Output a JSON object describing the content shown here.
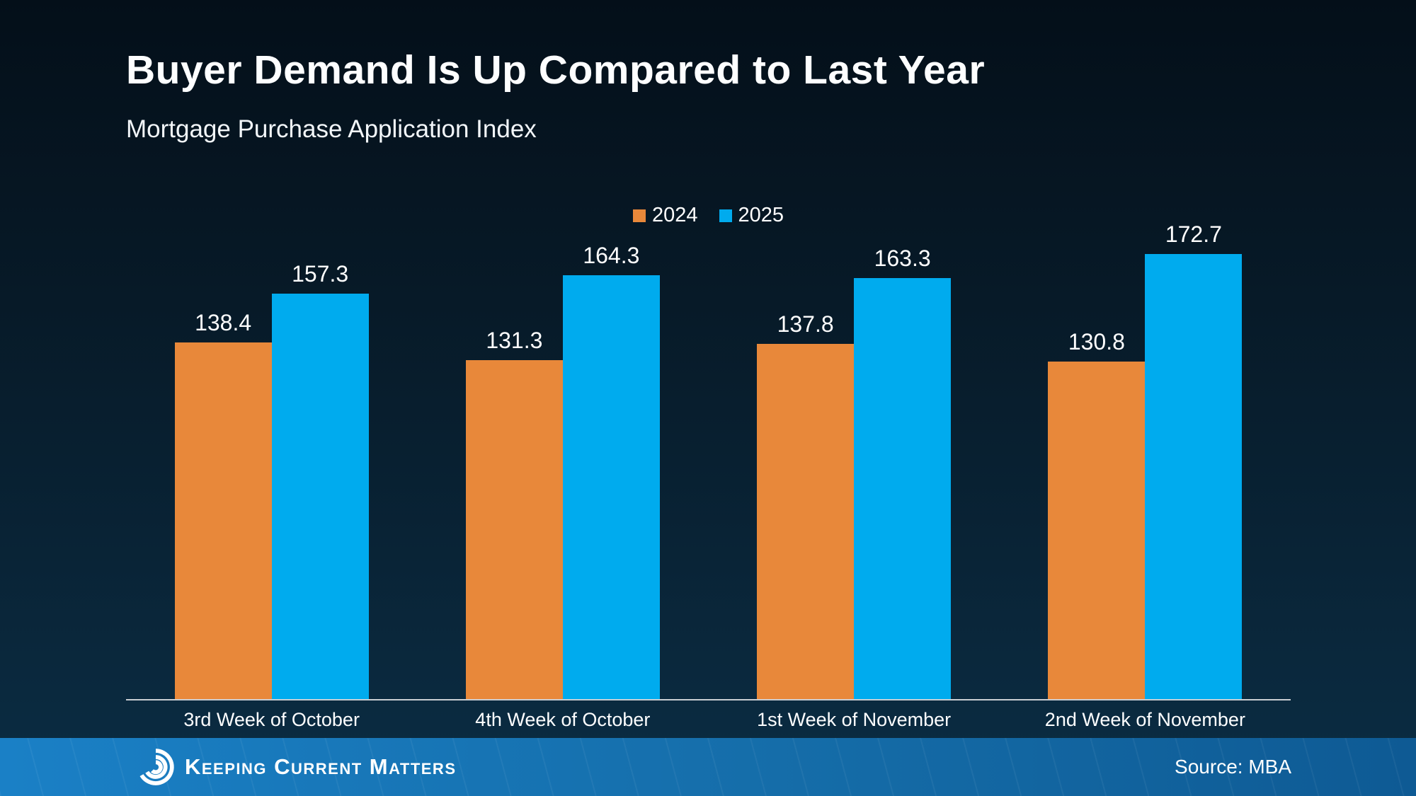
{
  "slide": {
    "title": "Buyer Demand Is Up Compared to Last Year",
    "subtitle": "Mortgage Purchase Application Index",
    "footer": {
      "brand": "Keeping Current Matters",
      "source": "Source: MBA"
    }
  },
  "colors": {
    "background_top": "#040f19",
    "background_bottom": "#0b2d44",
    "series_2024_orange": "#E8883A",
    "series_2025_blue": "#00ABEE",
    "axis_line": "#C9CDD2",
    "footer_bar_left": "#1A80C6",
    "footer_bar_right": "#0E5A94",
    "text": "#FFFFFF"
  },
  "icons": {
    "brand_logo": "kcm-swirl-icon"
  },
  "chart_data": {
    "type": "bar",
    "title": "Buyer Demand Is Up Compared to Last Year",
    "subtitle": "Mortgage Purchase Application Index",
    "categories": [
      "3rd Week of October",
      "4th Week of October",
      "1st Week of November",
      "2nd Week of November"
    ],
    "series": [
      {
        "name": "2024",
        "color": "#E8883A",
        "values": [
          138.4,
          131.3,
          137.8,
          130.8
        ]
      },
      {
        "name": "2025",
        "color": "#00ABEE",
        "values": [
          157.3,
          164.3,
          163.3,
          172.7
        ]
      }
    ],
    "xlabel": "",
    "ylabel": "",
    "ylim": [
      0,
      180
    ],
    "grid": false,
    "legend_position": "top-center",
    "data_labels": true
  }
}
